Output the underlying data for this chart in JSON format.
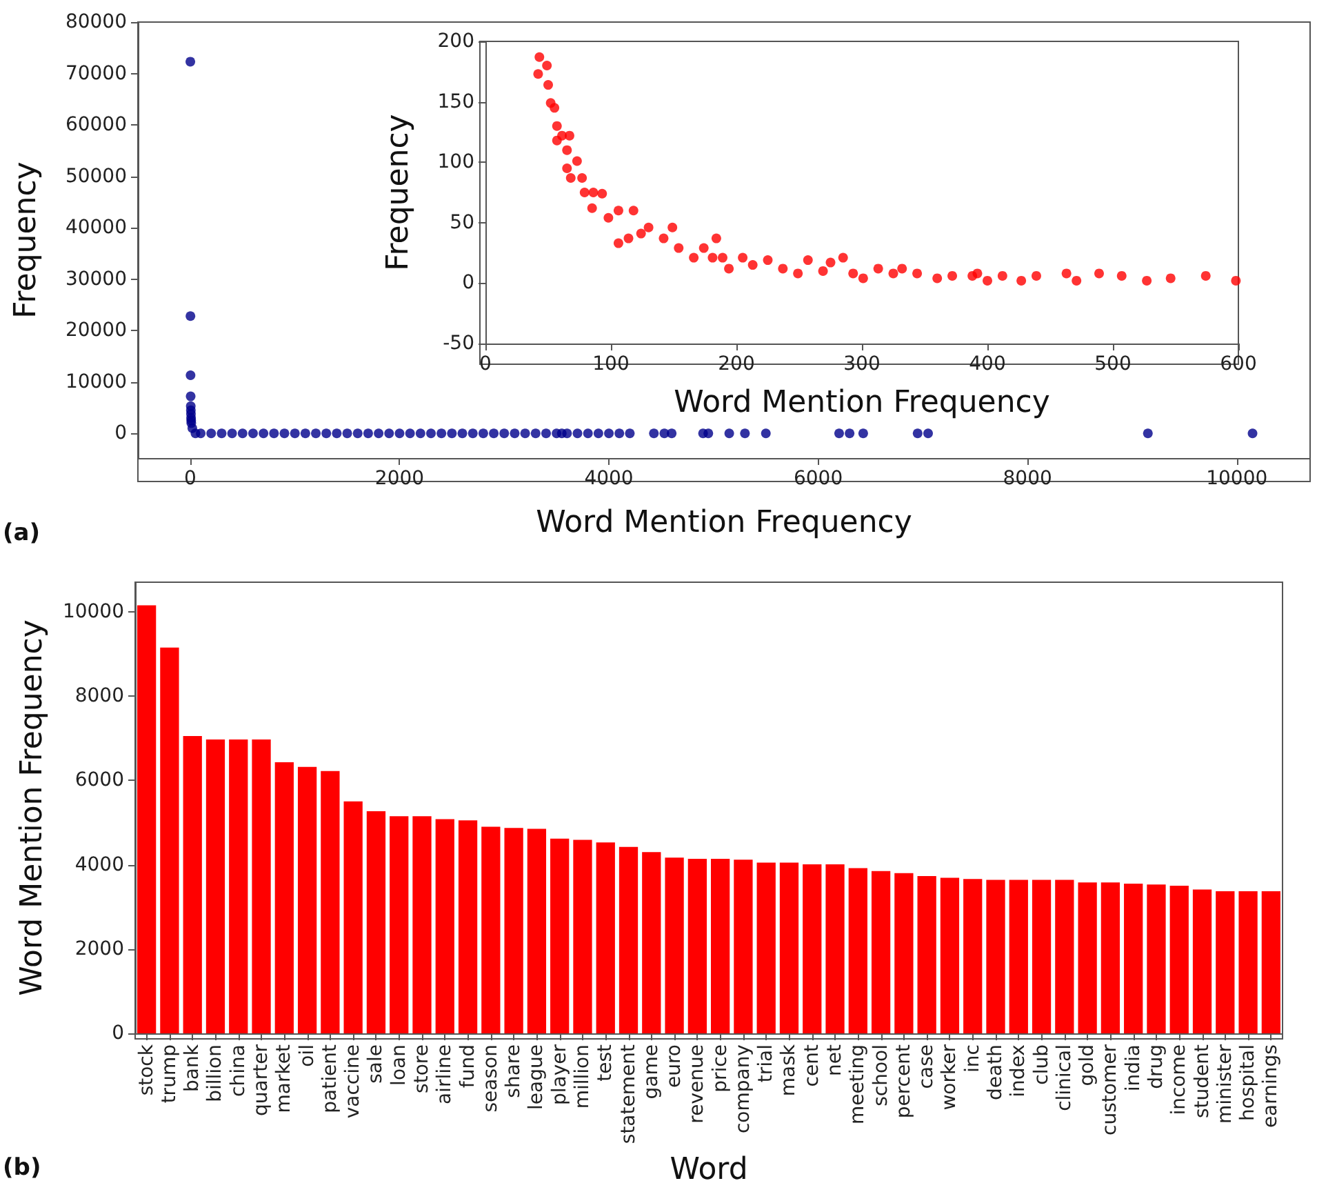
{
  "chart_data": [
    {
      "type": "scatter",
      "xlabel": "Word Mention Frequency",
      "ylabel": "Frequency",
      "annotations": [
        "(a)"
      ],
      "color": "#00008b",
      "marker": "circle",
      "x": [
        1,
        2,
        3,
        4,
        5,
        6,
        7,
        8,
        9,
        10,
        20,
        50,
        100,
        200,
        300,
        400,
        500,
        600,
        700,
        800,
        900,
        1000,
        1100,
        1200,
        1300,
        1400,
        1500,
        1600,
        1700,
        1800,
        1900,
        2000,
        2100,
        2200,
        2300,
        2400,
        2500,
        2600,
        2700,
        2800,
        2900,
        3000,
        3100,
        3200,
        3300,
        3400,
        3500,
        3550,
        3600,
        3700,
        3800,
        3900,
        4000,
        4100,
        4200,
        4430,
        4530,
        4600,
        4900,
        4950,
        5150,
        5300,
        5500,
        6200,
        6300,
        6430,
        6950,
        7050,
        9150,
        10150
      ],
      "values": [
        72300,
        22800,
        11300,
        7200,
        5300,
        4500,
        3800,
        3000,
        2500,
        2000,
        1000,
        0,
        0,
        0,
        0,
        0,
        0,
        0,
        0,
        0,
        0,
        0,
        0,
        0,
        0,
        0,
        0,
        0,
        0,
        0,
        0,
        0,
        0,
        0,
        0,
        0,
        0,
        0,
        0,
        0,
        0,
        0,
        0,
        0,
        0,
        0,
        0,
        0,
        0,
        0,
        0,
        0,
        0,
        0,
        0,
        0,
        0,
        0,
        0,
        0,
        0,
        0,
        0,
        0,
        0,
        0,
        0,
        0,
        0,
        0
      ],
      "xlim": [
        -500,
        10700
      ],
      "ylim": [
        -4800,
        80000
      ],
      "xticks": [
        0,
        2000,
        4000,
        6000,
        8000,
        10000
      ],
      "yticks": [
        0,
        10000,
        20000,
        30000,
        40000,
        50000,
        60000,
        70000,
        80000
      ]
    },
    {
      "type": "scatter",
      "xlabel": "Word Mention Frequency",
      "ylabel": "Frequency",
      "color": "#ff0000",
      "marker": "circle",
      "x": [
        42,
        43,
        49,
        50,
        52,
        55,
        57,
        61,
        57,
        65,
        67,
        65,
        73,
        68,
        77,
        79,
        86,
        85,
        93,
        98,
        106,
        106,
        118,
        114,
        124,
        130,
        142,
        149,
        154,
        166,
        174,
        184,
        181,
        189,
        194,
        205,
        213,
        225,
        237,
        249,
        257,
        269,
        275,
        285,
        293,
        301,
        313,
        325,
        332,
        344,
        360,
        372,
        388,
        392,
        400,
        412,
        427,
        439,
        463,
        471,
        489,
        507,
        527,
        546,
        574,
        598
      ],
      "values": [
        173,
        187,
        180,
        164,
        149,
        145,
        130,
        122,
        118,
        110,
        122,
        95,
        101,
        87,
        87,
        75,
        75,
        62,
        74,
        54,
        60,
        33,
        60,
        37,
        41,
        46,
        37,
        46,
        29,
        21,
        29,
        37,
        21,
        21,
        12,
        21,
        15,
        19,
        12,
        8,
        19,
        10,
        17,
        21,
        8,
        4,
        12,
        8,
        12,
        8,
        4,
        6,
        6,
        8,
        2,
        6,
        2,
        6,
        8,
        2,
        8,
        6,
        2,
        4,
        6,
        2
      ],
      "xlim": [
        0,
        600
      ],
      "ylim": [
        -50,
        200
      ],
      "xticks": [
        0,
        100,
        200,
        300,
        400,
        500,
        600
      ],
      "yticks": [
        -50,
        0,
        50,
        100,
        150,
        200
      ]
    },
    {
      "type": "bar",
      "xlabel": "Word",
      "ylabel": "Word Mention Frequency",
      "annotations": [
        "(b)"
      ],
      "color": "#ff0000",
      "categories": [
        "stock",
        "trump",
        "bank",
        "billion",
        "china",
        "quarter",
        "market",
        "oil",
        "patient",
        "vaccine",
        "sale",
        "loan",
        "store",
        "airline",
        "fund",
        "season",
        "share",
        "league",
        "player",
        "million",
        "test",
        "statement",
        "game",
        "euro",
        "revenue",
        "price",
        "company",
        "trial",
        "mask",
        "cent",
        "net",
        "meeting",
        "school",
        "percent",
        "case",
        "worker",
        "inc",
        "death",
        "index",
        "club",
        "clinical",
        "gold",
        "customer",
        "india",
        "drug",
        "income",
        "student",
        "minister",
        "hospital",
        "earnings"
      ],
      "values": [
        10150,
        9150,
        7050,
        6970,
        6970,
        6970,
        6430,
        6320,
        6220,
        5500,
        5270,
        5150,
        5150,
        5080,
        5050,
        4900,
        4870,
        4850,
        4620,
        4590,
        4530,
        4420,
        4300,
        4170,
        4140,
        4140,
        4120,
        4050,
        4050,
        4010,
        4010,
        3920,
        3850,
        3800,
        3730,
        3690,
        3660,
        3640,
        3640,
        3640,
        3640,
        3580,
        3580,
        3550,
        3530,
        3500,
        3410,
        3370,
        3370,
        3370
      ],
      "ylim": [
        0,
        10700
      ],
      "yticks": [
        0,
        2000,
        4000,
        6000,
        8000,
        10000
      ]
    }
  ]
}
